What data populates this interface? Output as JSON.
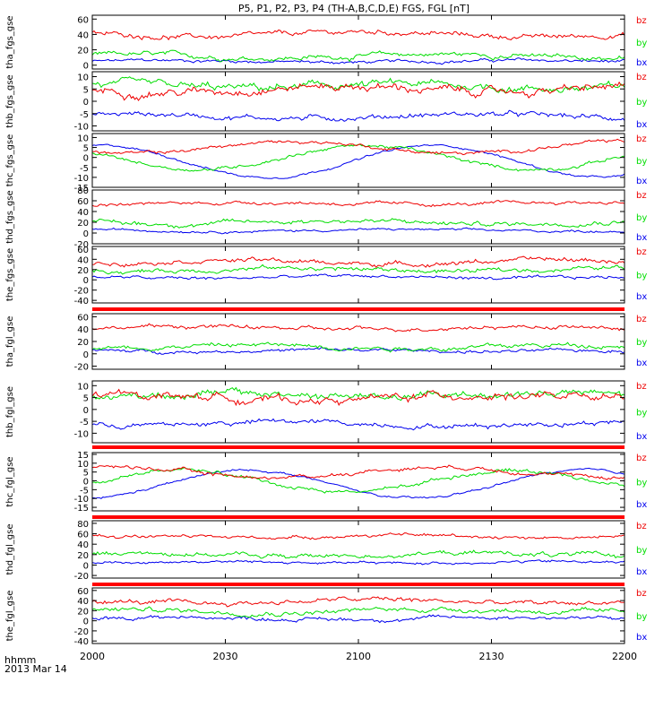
{
  "title": "P5, P1, P2, P3, P4 (TH-A,B,C,D,E) FGS, FGL [nT]",
  "footer": {
    "hhmm_label": "hhmm",
    "date_label": "2013 Mar 14"
  },
  "colors": {
    "bx": "#0000ee",
    "by": "#00dd00",
    "bz": "#ee0000",
    "frame": "#000000",
    "stripe": "#ff0000"
  },
  "chart_data": {
    "type": "line",
    "x_ticks": [
      "2000",
      "2030",
      "2100",
      "2130",
      "2200"
    ],
    "x_range_minutes": [
      0,
      120
    ],
    "legend_labels": [
      "bz",
      "by",
      "bx"
    ],
    "panels": [
      {
        "name": "tha_fgs_gse",
        "ylabel": "tha_fgs_gse",
        "ylim": [
          -5,
          65
        ],
        "yticks": [
          "60",
          "40",
          "20",
          "0"
        ],
        "yvals": [
          60,
          40,
          20,
          0
        ],
        "series": {
          "bx": {
            "base": 5,
            "var": 3,
            "noise": 2
          },
          "by": {
            "base": 12,
            "var": 6,
            "noise": 3
          },
          "bz": {
            "base": 40,
            "var": 8,
            "noise": 3
          }
        }
      },
      {
        "name": "thb_fgs_gse",
        "ylabel": "thb_fgs_gse",
        "ylim": [
          -12,
          12
        ],
        "yticks": [
          "10",
          "5",
          "0",
          "-5",
          "-10"
        ],
        "yvals": [
          10,
          5,
          0,
          -5,
          -10
        ],
        "series": {
          "bx": {
            "base": -6,
            "var": 2,
            "noise": 1
          },
          "by": {
            "base": 6,
            "var": 2,
            "noise": 1.5
          },
          "bz": {
            "base": 5,
            "var": 3,
            "noise": 1.5
          }
        }
      },
      {
        "name": "thc_fgs_gse",
        "ylabel": "thc_fgs_gse",
        "ylim": [
          -15,
          12
        ],
        "yticks": [
          "10",
          "5",
          "0",
          "-5",
          "-10",
          "-15"
        ],
        "yvals": [
          10,
          5,
          0,
          -5,
          -10,
          -15
        ],
        "series": {
          "bx": {
            "base": -2,
            "var": 8,
            "noise": 0.5
          },
          "by": {
            "base": 0,
            "var": 6,
            "noise": 0.8
          },
          "bz": {
            "base": 5,
            "var": 3,
            "noise": 0.8
          }
        }
      },
      {
        "name": "thd_fgs_gse",
        "ylabel": "thd_fgs_gse",
        "ylim": [
          -20,
          80
        ],
        "yticks": [
          "80",
          "60",
          "40",
          "20",
          "0",
          "-20"
        ],
        "yvals": [
          80,
          60,
          40,
          20,
          0,
          -20
        ],
        "series": {
          "bx": {
            "base": 5,
            "var": 4,
            "noise": 2
          },
          "by": {
            "base": 20,
            "var": 8,
            "noise": 4
          },
          "bz": {
            "base": 55,
            "var": 5,
            "noise": 3
          }
        }
      },
      {
        "name": "the_fgs_gse",
        "ylabel": "the_fgs_gse",
        "ylim": [
          -45,
          65
        ],
        "yticks": [
          "60",
          "40",
          "20",
          "0",
          "-20",
          "-40"
        ],
        "yvals": [
          60,
          40,
          20,
          0,
          -20,
          -40
        ],
        "series": {
          "bx": {
            "base": 5,
            "var": 6,
            "noise": 3
          },
          "by": {
            "base": 20,
            "var": 8,
            "noise": 4
          },
          "bz": {
            "base": 35,
            "var": 10,
            "noise": 4
          }
        }
      },
      {
        "name": "tha_fgl_gse",
        "ylabel": "tha_fgl_gse",
        "ylim": [
          -25,
          65
        ],
        "yticks": [
          "60",
          "40",
          "20",
          "0",
          "-20"
        ],
        "yvals": [
          60,
          40,
          20,
          0,
          -20
        ],
        "series": {
          "bx": {
            "base": 5,
            "var": 3,
            "noise": 2.5
          },
          "by": {
            "base": 12,
            "var": 6,
            "noise": 3.5
          },
          "bz": {
            "base": 42,
            "var": 6,
            "noise": 3
          }
        }
      },
      {
        "name": "thb_fgl_gse",
        "ylabel": "thb_fgl_gse",
        "ylim": [
          -14,
          12
        ],
        "yticks": [
          "10",
          "5",
          "0",
          "-5",
          "-10"
        ],
        "yvals": [
          10,
          5,
          0,
          -5,
          -10
        ],
        "series": {
          "bx": {
            "base": -6,
            "var": 2,
            "noise": 1
          },
          "by": {
            "base": 6,
            "var": 2,
            "noise": 1.5
          },
          "bz": {
            "base": 5,
            "var": 3,
            "noise": 1.5
          }
        }
      },
      {
        "name": "thc_fgl_gse",
        "ylabel": "thc_fgl_gse",
        "ylim": [
          -17,
          16
        ],
        "yticks": [
          "15",
          "10",
          "5",
          "0",
          "-5",
          "-10",
          "-15"
        ],
        "yvals": [
          15,
          10,
          5,
          0,
          -5,
          -10,
          -15
        ],
        "series": {
          "bx": {
            "base": -2,
            "var": 8,
            "noise": 0.6
          },
          "by": {
            "base": 0,
            "var": 6,
            "noise": 1
          },
          "bz": {
            "base": 5,
            "var": 3,
            "noise": 1
          }
        }
      },
      {
        "name": "thd_fgl_gse",
        "ylabel": "thd_fgl_gse",
        "ylim": [
          -25,
          85
        ],
        "yticks": [
          "80",
          "60",
          "40",
          "20",
          "0",
          "-20"
        ],
        "yvals": [
          80,
          60,
          40,
          20,
          0,
          -20
        ],
        "series": {
          "bx": {
            "base": 5,
            "var": 4,
            "noise": 2.5
          },
          "by": {
            "base": 20,
            "var": 8,
            "noise": 4
          },
          "bz": {
            "base": 55,
            "var": 5,
            "noise": 3
          }
        }
      },
      {
        "name": "the_fgl_gse",
        "ylabel": "the_fgl_gse",
        "ylim": [
          -45,
          65
        ],
        "yticks": [
          "60",
          "40",
          "20",
          "0",
          "-20",
          "-40"
        ],
        "yvals": [
          60,
          40,
          20,
          0,
          -20,
          -40
        ],
        "series": {
          "bx": {
            "base": 5,
            "var": 6,
            "noise": 3.5
          },
          "by": {
            "base": 20,
            "var": 8,
            "noise": 4.5
          },
          "bz": {
            "base": 38,
            "var": 10,
            "noise": 4.5
          }
        }
      }
    ]
  }
}
